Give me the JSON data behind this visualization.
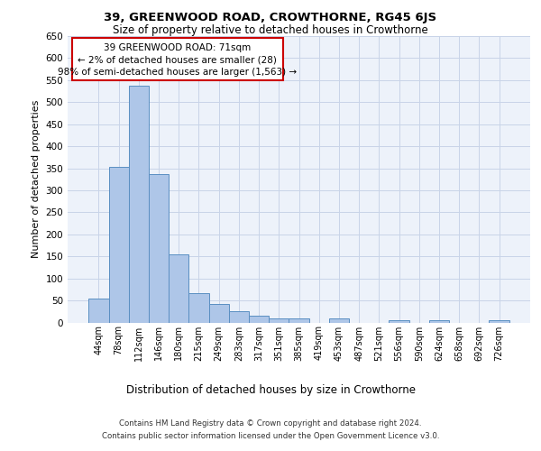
{
  "title_line1": "39, GREENWOOD ROAD, CROWTHORNE, RG45 6JS",
  "title_line2": "Size of property relative to detached houses in Crowthorne",
  "xlabel": "Distribution of detached houses by size in Crowthorne",
  "ylabel": "Number of detached properties",
  "categories": [
    "44sqm",
    "78sqm",
    "112sqm",
    "146sqm",
    "180sqm",
    "215sqm",
    "249sqm",
    "283sqm",
    "317sqm",
    "351sqm",
    "385sqm",
    "419sqm",
    "453sqm",
    "487sqm",
    "521sqm",
    "556sqm",
    "590sqm",
    "624sqm",
    "658sqm",
    "692sqm",
    "726sqm"
  ],
  "values": [
    55,
    353,
    538,
    336,
    155,
    67,
    42,
    25,
    15,
    10,
    10,
    0,
    10,
    0,
    0,
    5,
    0,
    5,
    0,
    0,
    5
  ],
  "bar_color": "#aec6e8",
  "bar_edge_color": "#5a8fc2",
  "annotation_box_color": "#cc0000",
  "annotation_text_line1": "39 GREENWOOD ROAD: 71sqm",
  "annotation_text_line2": "← 2% of detached houses are smaller (28)",
  "annotation_text_line3": "98% of semi-detached houses are larger (1,563) →",
  "ylim": [
    0,
    650
  ],
  "yticks": [
    0,
    50,
    100,
    150,
    200,
    250,
    300,
    350,
    400,
    450,
    500,
    550,
    600,
    650
  ],
  "footer_line1": "Contains HM Land Registry data © Crown copyright and database right 2024.",
  "footer_line2": "Contains public sector information licensed under the Open Government Licence v3.0.",
  "bg_color": "#edf2fa",
  "grid_color": "#c8d4e8"
}
